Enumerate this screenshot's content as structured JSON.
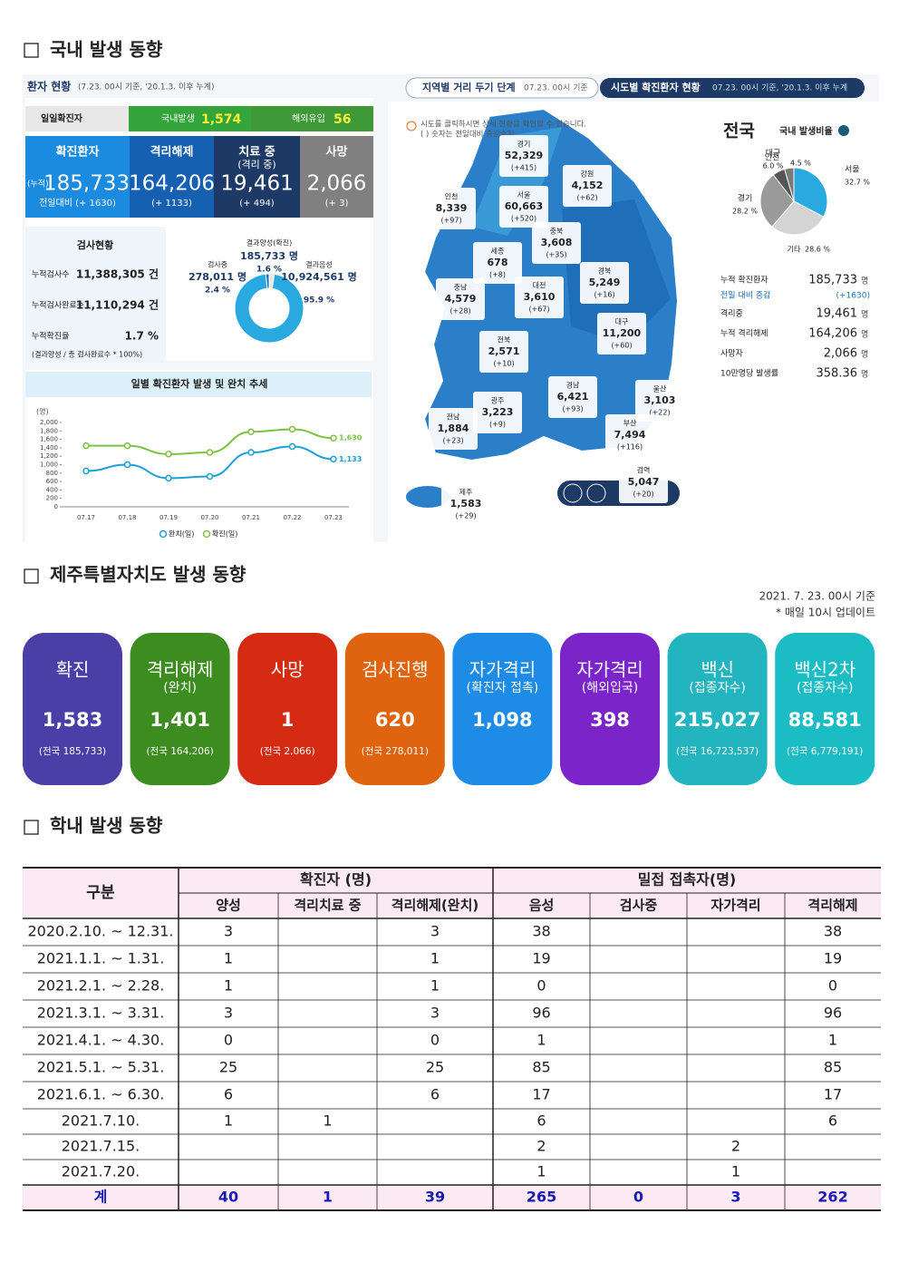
{
  "domestic": {
    "title": "국내 발생 동향",
    "status": {
      "heading": "환자 현황",
      "basis": "(7.23. 00시 기준, '20.1.3. 이후 누계)",
      "daily_label": "일일확진자",
      "local_label": "국내발생",
      "local": "1,574",
      "overseas_label": "해외유입",
      "overseas": "56",
      "boxes": [
        {
          "label": "확진환자",
          "prefix": "(누적)",
          "value": "185,733",
          "change": "전일대비 (+ 1630)",
          "color": "#1b8be0"
        },
        {
          "label": "격리해제",
          "value": "164,206",
          "change": "(+ 1133)",
          "color": "#1660b2"
        },
        {
          "label": "치료 중",
          "sub": "(격리 중)",
          "value": "19,461",
          "change": "(+ 494)",
          "color": "#1d3a66"
        },
        {
          "label": "사망",
          "value": "2,066",
          "change": "(+ 3)",
          "color": "#808080"
        }
      ]
    },
    "tests": {
      "heading": "검사현황",
      "rows": [
        [
          "누적검사수",
          "11,388,305 건"
        ],
        [
          "누적검사완료수",
          "11,110,294 건"
        ],
        [
          "누적확진율",
          "1.7 %"
        ]
      ],
      "note": "(결과양성 / 총 검사완료수 * 100%)",
      "donut": [
        {
          "name": "결과양성(확진)",
          "count": "185,733 명",
          "value": 1.6,
          "value_label": "1.6 %",
          "color": "#1a6fb5"
        },
        {
          "name": "검사중",
          "count": "278,011 명",
          "value": 2.4,
          "value_label": "2.4 %",
          "color": "#e6e6e6"
        },
        {
          "name": "결과음성",
          "count": "10,924,561 명",
          "value": 95.9,
          "value_label": "95.9 %",
          "color": "#2aa8e0"
        }
      ]
    },
    "trend": {
      "type": "line",
      "title": "일별 확진환자 발생 및 완치 추세",
      "y_unit": "(명)",
      "categories": [
        "07.17",
        "07.18",
        "07.19",
        "07.20",
        "07.21",
        "07.22",
        "07.23"
      ],
      "series": [
        {
          "name": "완치(일)",
          "color": "#1ba0d8",
          "values": [
            850,
            1000,
            680,
            720,
            1290,
            1430,
            1133
          ],
          "value_labels": [
            null,
            null,
            null,
            null,
            null,
            null,
            "1,133"
          ]
        },
        {
          "name": "확진(일)",
          "color": "#7cc242",
          "values": [
            1450,
            1450,
            1250,
            1290,
            1780,
            1840,
            1630
          ],
          "value_labels": [
            null,
            null,
            null,
            null,
            null,
            null,
            "1,630"
          ]
        }
      ],
      "ylim": [
        0,
        2000
      ],
      "yticks": [
        0,
        200,
        400,
        600,
        800,
        {
          "value": 1000,
          "label": "1,000"
        },
        {
          "value": 1200,
          "label": "1,200"
        },
        {
          "value": 1400,
          "label": "1,400"
        },
        {
          "value": 1600,
          "label": "1,600"
        },
        {
          "value": 1800,
          "label": "1,800"
        },
        {
          "value": 2000,
          "label": "2,000"
        }
      ]
    },
    "distancing_tab": {
      "label": "지역별 거리 두기 단계",
      "basis": "07.23. 00시 기준"
    },
    "region_tab": {
      "label": "시도별 확진환자 현황",
      "basis": "07.23. 00시 기준, '20.1.3. 이후 누계"
    },
    "map_notes": [
      "시도를 클릭하시면 상세 현황을 확인할 수 있습니다.",
      "( ) 숫자는 전일대비 증감수치"
    ],
    "regions": [
      {
        "name": "경기",
        "total": "52,329",
        "change": "(+415)"
      },
      {
        "name": "강원",
        "total": "4,152",
        "change": "(+62)"
      },
      {
        "name": "인천",
        "total": "8,339",
        "change": "(+97)"
      },
      {
        "name": "서울",
        "total": "60,663",
        "change": "(+520)"
      },
      {
        "name": "충북",
        "total": "3,608",
        "change": "(+35)"
      },
      {
        "name": "세종",
        "total": "678",
        "change": "(+8)"
      },
      {
        "name": "충남",
        "total": "4,579",
        "change": "(+28)"
      },
      {
        "name": "대전",
        "total": "3,610",
        "change": "(+67)"
      },
      {
        "name": "경북",
        "total": "5,249",
        "change": "(+16)"
      },
      {
        "name": "대구",
        "total": "11,200",
        "change": "(+60)"
      },
      {
        "name": "전북",
        "total": "2,571",
        "change": "(+10)"
      },
      {
        "name": "울산",
        "total": "3,103",
        "change": "(+22)"
      },
      {
        "name": "경남",
        "total": "6,421",
        "change": "(+93)"
      },
      {
        "name": "광주",
        "total": "3,223",
        "change": "(+9)"
      },
      {
        "name": "전남",
        "total": "1,884",
        "change": "(+23)"
      },
      {
        "name": "부산",
        "total": "7,494",
        "change": "(+116)"
      },
      {
        "name": "제주",
        "total": "1,583",
        "change": "(+29)"
      },
      {
        "name": "검역",
        "total": "5,047",
        "change": "(+20)"
      }
    ],
    "national": {
      "title": "전국",
      "ratio_title": "국내 발생비율",
      "pie": {
        "names": [
          "서울",
          "기타",
          "경기",
          "대구",
          "인천"
        ],
        "values": [
          32.7,
          28.6,
          28.2,
          6.0,
          4.5
        ],
        "value_labels": [
          "32.7 %",
          "28.6 %",
          "28.2 %",
          "6.0 %",
          "4.5 %"
        ],
        "colors": [
          "#2aa8e0",
          "#d4d4d4",
          "#9a9a9a",
          "#555555",
          "#7a7a7a"
        ]
      },
      "stats": [
        {
          "label": "누적 확진환자",
          "value": "185,733",
          "unit": "명"
        },
        {
          "label": "전일 대비 증감",
          "value": "(+1630)"
        },
        {
          "label": "격리중",
          "value": "19,461",
          "unit": "명"
        },
        {
          "label": "누적 격리해제",
          "value": "164,206",
          "unit": "명"
        },
        {
          "label": "사망자",
          "value": "2,066",
          "unit": "명"
        },
        {
          "label": "10만명당 발생률",
          "value": "358.36",
          "unit": "명"
        }
      ]
    }
  },
  "jeju": {
    "title": "제주특별자치도 발생 동향",
    "basis": "2021. 7. 23. 00시 기준",
    "update": "* 매일 10시 업데이트",
    "cards": [
      {
        "title": "확진",
        "value": "1,583",
        "national": "(전국 185,733)",
        "color": "#4a3fa6"
      },
      {
        "title": "격리해제",
        "sub": "(완치)",
        "value": "1,401",
        "national": "(전국 164,206)",
        "color": "#3d8c1f"
      },
      {
        "title": "사망",
        "value": "1",
        "national": "(전국 2,066)",
        "color": "#d42b12"
      },
      {
        "title": "검사진행",
        "value": "620",
        "national": "(전국 278,011)",
        "color": "#e0640f"
      },
      {
        "title": "자가격리",
        "sub": "(확진자 접촉)",
        "value": "1,098",
        "color": "#1e8ce6"
      },
      {
        "title": "자가격리",
        "sub": "(해외입국)",
        "value": "398",
        "color": "#7b24c9"
      },
      {
        "title": "백신",
        "sub": "(접종자수)",
        "value": "215,027",
        "national": "(전국 16,723,537)",
        "color": "#22b5bf"
      },
      {
        "title": "백신2차",
        "sub": "(접종자수)",
        "value": "88,581",
        "national": "(전국 6,779,191)",
        "color": "#1cbcc5"
      }
    ]
  },
  "school": {
    "title": "학내 발생 동향",
    "table": {
      "corner": "구분",
      "groups": [
        {
          "label": "확진자 (명)",
          "columns": [
            "양성",
            "격리치료 중",
            "격리해제(완치)"
          ]
        },
        {
          "label": "밀접 접촉자(명)",
          "columns": [
            "음성",
            "검사중",
            "자가격리",
            "격리해제"
          ]
        }
      ],
      "rows": [
        [
          "2020.2.10. ~ 12.31.",
          "3",
          null,
          "3",
          "38",
          null,
          null,
          "38"
        ],
        [
          "2021.1.1. ~ 1.31.",
          "1",
          null,
          "1",
          "19",
          null,
          null,
          "19"
        ],
        [
          "2021.2.1. ~ 2.28.",
          "1",
          null,
          "1",
          "0",
          null,
          null,
          "0"
        ],
        [
          "2021.3.1. ~ 3.31.",
          "3",
          null,
          "3",
          "96",
          null,
          null,
          "96"
        ],
        [
          "2021.4.1. ~ 4.30.",
          "0",
          null,
          "0",
          "1",
          null,
          null,
          "1"
        ],
        [
          "2021.5.1. ~ 5.31.",
          "25",
          null,
          "25",
          "85",
          null,
          null,
          "85"
        ],
        [
          "2021.6.1. ~ 6.30.",
          "6",
          null,
          "6",
          "17",
          null,
          null,
          "17"
        ],
        [
          "2021.7.10.",
          "1",
          "1",
          null,
          "6",
          null,
          null,
          "6"
        ],
        [
          "2021.7.15.",
          null,
          null,
          null,
          "2",
          null,
          "2",
          null
        ],
        [
          "2021.7.20.",
          null,
          null,
          null,
          "1",
          null,
          "1",
          null
        ]
      ],
      "total": [
        "계",
        "40",
        "1",
        "39",
        "265",
        "0",
        "3",
        "262"
      ]
    }
  }
}
